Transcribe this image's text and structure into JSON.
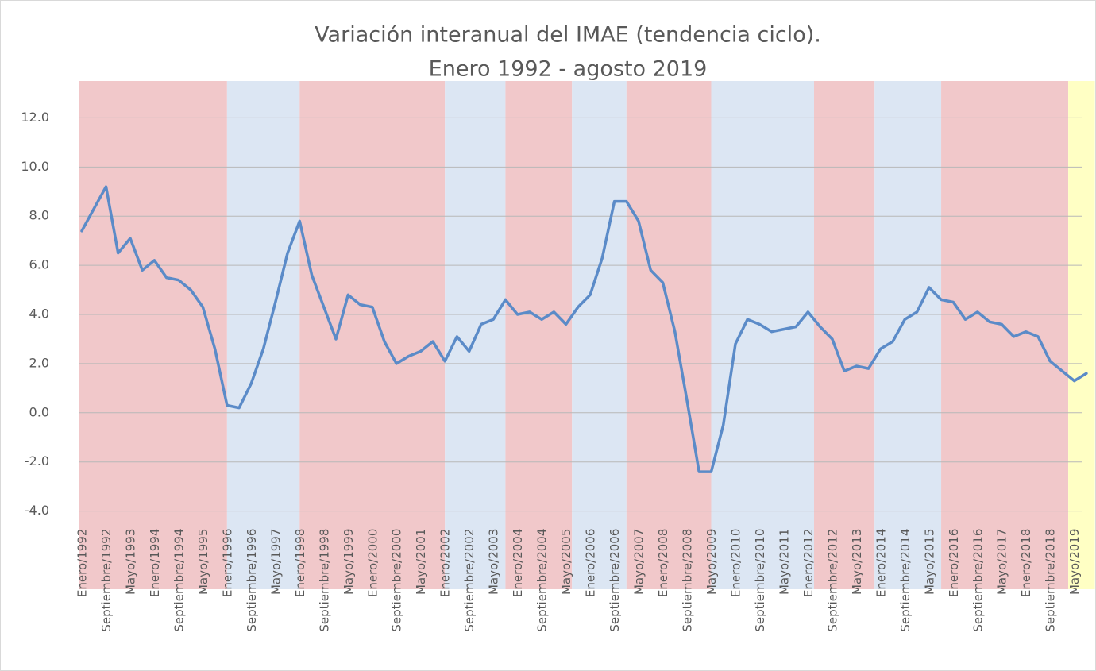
{
  "chart_data": {
    "type": "line",
    "title": [
      "Variación interanual del IMAE (tendencia ciclo).",
      "Enero 1992 - agosto 2019"
    ],
    "categories": [
      "Enero/1992",
      null,
      "Septiembre/1992",
      null,
      "Mayo/1993",
      null,
      "Enero/1994",
      null,
      "Septiembre/1994",
      null,
      "Mayo/1995",
      null,
      "Enero/1996",
      null,
      "Septiembre/1996",
      null,
      "Mayo/1997",
      null,
      "Enero/1998",
      null,
      "Septiembre/1998",
      null,
      "Mayo/1999",
      null,
      "Enero/2000",
      null,
      "Septiembre/2000",
      null,
      "Mayo/2001",
      null,
      "Enero/2002",
      null,
      "Septiembre/2002",
      null,
      "Mayo/2003",
      null,
      "Enero/2004",
      null,
      "Septiembre/2004",
      null,
      "Mayo/2005",
      null,
      "Enero/2006",
      null,
      "Septiembre/2006",
      null,
      "Mayo/2007",
      null,
      "Enero/2008",
      null,
      "Septiembre/2008",
      null,
      "Mayo/2009",
      null,
      "Enero/2010",
      null,
      "Septiembre/2010",
      null,
      "Mayo/2011",
      null,
      "Enero/2012",
      null,
      "Septiembre/2012",
      null,
      "Mayo/2013",
      null,
      "Enero/2014",
      null,
      "Septiembre/2014",
      null,
      "Mayo/2015",
      null,
      "Enero/2016",
      null,
      "Septiembre/2016",
      null,
      "Mayo/2017",
      null,
      "Enero/2018",
      null,
      "Septiembre/2018",
      null,
      "Mayo/2019",
      null
    ],
    "values": [
      7.4,
      8.3,
      9.2,
      6.5,
      7.1,
      5.8,
      6.2,
      5.5,
      5.4,
      5.0,
      4.3,
      2.6,
      0.3,
      0.2,
      1.2,
      2.6,
      4.5,
      6.5,
      7.8,
      5.6,
      4.3,
      3.0,
      4.8,
      4.4,
      4.3,
      2.9,
      2.0,
      2.3,
      2.5,
      2.9,
      2.1,
      3.1,
      2.5,
      3.6,
      3.8,
      4.6,
      4.0,
      4.1,
      3.8,
      4.1,
      3.6,
      4.3,
      4.8,
      6.3,
      8.6,
      8.6,
      7.8,
      5.8,
      5.3,
      3.3,
      0.5,
      -2.4,
      -2.4,
      -0.5,
      2.8,
      3.8,
      3.6,
      3.3,
      3.4,
      3.5,
      4.1,
      3.5,
      3.0,
      1.7,
      1.9,
      1.8,
      2.6,
      2.9,
      3.8,
      4.1,
      5.1,
      4.6,
      4.5,
      3.8,
      4.1,
      3.7,
      3.6,
      3.1,
      3.3,
      3.1,
      2.1,
      1.7,
      1.3,
      1.6
    ],
    "color": "#5b8bc8",
    "ylim": [
      -4,
      13.5
    ],
    "yticks": [
      {
        "value": -4,
        "label": "-4.0"
      },
      {
        "value": -2,
        "label": "-2.0"
      },
      {
        "value": 0,
        "label": "0.0"
      },
      {
        "value": 2,
        "label": "2.0"
      },
      {
        "value": 4,
        "label": "4.0"
      },
      {
        "value": 6,
        "label": "6.0"
      },
      {
        "value": 8,
        "label": "8.0"
      },
      {
        "value": 10,
        "label": "10.0"
      },
      {
        "value": 12,
        "label": "12.0"
      }
    ],
    "grid": true,
    "bands": [
      {
        "start": 0,
        "end": 12,
        "color": "#f1c8ca"
      },
      {
        "start": 12,
        "end": 18,
        "color": "#dce6f3"
      },
      {
        "start": 18,
        "end": 30,
        "color": "#f1c8ca"
      },
      {
        "start": 30,
        "end": 35,
        "color": "#dce6f3"
      },
      {
        "start": 35,
        "end": 40.5,
        "color": "#f1c8ca"
      },
      {
        "start": 40.5,
        "end": 45,
        "color": "#dce6f3"
      },
      {
        "start": 45,
        "end": 52,
        "color": "#f1c8ca"
      },
      {
        "start": 52,
        "end": 60.5,
        "color": "#dce6f3"
      },
      {
        "start": 60.5,
        "end": 65.5,
        "color": "#f1c8ca"
      },
      {
        "start": 65.5,
        "end": 71,
        "color": "#dce6f3"
      },
      {
        "start": 71,
        "end": 81.5,
        "color": "#f1c8ca"
      },
      {
        "start": 81.5,
        "end": 83.7,
        "color": "#ffffc4"
      }
    ]
  }
}
